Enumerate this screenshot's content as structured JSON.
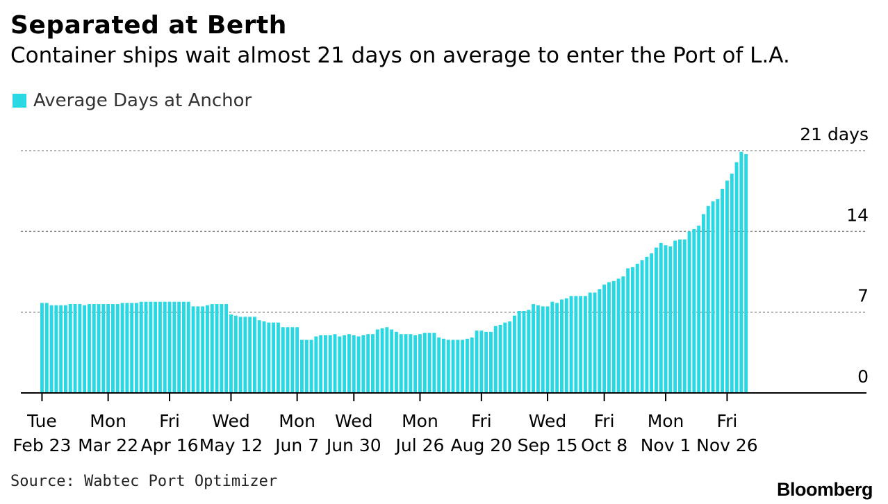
{
  "title": "Separated at Berth",
  "subtitle": "Container ships wait almost 21 days on average to enter the Port of L.A.",
  "source": "Source: Wabtec Port Optimizer",
  "brand": "Bloomberg",
  "colors": {
    "bar": "#2ad8e4",
    "grid": "#888888",
    "axis": "#000000",
    "text": "#000000"
  },
  "chart_data": {
    "type": "bar",
    "title": "Separated at Berth",
    "subtitle": "Container ships wait almost 21 days on average to enter the Port of L.A.",
    "legend": [
      {
        "name": "Average Days at Anchor",
        "color": "#2ad8e4"
      }
    ],
    "legend_position": "top-left",
    "grid": "horizontal dotted",
    "ylim": [
      0,
      21
    ],
    "y_ticks": [
      {
        "value": 0,
        "label": "0"
      },
      {
        "value": 7,
        "label": "7"
      },
      {
        "value": 14,
        "label": "14"
      },
      {
        "value": 21,
        "label": "21 days"
      }
    ],
    "x_ticks": [
      {
        "index": 0,
        "weekday": "Tue",
        "date": "Feb 23"
      },
      {
        "index": 14,
        "weekday": "Mon",
        "date": "Mar 22"
      },
      {
        "index": 27,
        "weekday": "Fri",
        "date": "Apr 16"
      },
      {
        "index": 40,
        "weekday": "Wed",
        "date": "May 12"
      },
      {
        "index": 54,
        "weekday": "Mon",
        "date": "Jun 7"
      },
      {
        "index": 66,
        "weekday": "Wed",
        "date": "Jun 30"
      },
      {
        "index": 80,
        "weekday": "Mon",
        "date": "Jul 26"
      },
      {
        "index": 93,
        "weekday": "Fri",
        "date": "Aug 20"
      },
      {
        "index": 107,
        "weekday": "Wed",
        "date": "Sep 15"
      },
      {
        "index": 119,
        "weekday": "Fri",
        "date": "Oct 8"
      },
      {
        "index": 132,
        "weekday": "Mon",
        "date": "Nov 1"
      },
      {
        "index": 145,
        "weekday": "Fri",
        "date": "Nov 26"
      }
    ],
    "series": [
      {
        "name": "Average Days at Anchor",
        "values": [
          7.8,
          7.8,
          7.6,
          7.6,
          7.6,
          7.6,
          7.7,
          7.7,
          7.7,
          7.6,
          7.7,
          7.7,
          7.7,
          7.7,
          7.7,
          7.7,
          7.7,
          7.8,
          7.8,
          7.8,
          7.8,
          7.9,
          7.9,
          7.9,
          7.9,
          7.9,
          7.9,
          7.9,
          7.9,
          7.9,
          7.9,
          7.9,
          7.5,
          7.5,
          7.5,
          7.6,
          7.7,
          7.7,
          7.7,
          7.7,
          6.8,
          6.7,
          6.6,
          6.6,
          6.6,
          6.6,
          6.3,
          6.2,
          6.1,
          6.1,
          6.1,
          5.7,
          5.7,
          5.7,
          5.7,
          4.6,
          4.6,
          4.6,
          4.9,
          5.0,
          5.0,
          5.0,
          5.1,
          4.9,
          5.0,
          5.1,
          5.0,
          4.9,
          5.0,
          5.1,
          5.1,
          5.5,
          5.6,
          5.7,
          5.5,
          5.3,
          5.1,
          5.1,
          5.1,
          5.0,
          5.1,
          5.2,
          5.2,
          5.2,
          4.8,
          4.7,
          4.6,
          4.6,
          4.6,
          4.6,
          4.7,
          4.8,
          5.4,
          5.4,
          5.3,
          5.3,
          5.8,
          5.9,
          6.1,
          6.2,
          6.7,
          7.1,
          7.1,
          7.2,
          7.7,
          7.6,
          7.5,
          7.5,
          7.9,
          7.8,
          8.1,
          8.2,
          8.4,
          8.4,
          8.4,
          8.4,
          8.7,
          8.7,
          9.0,
          9.4,
          9.6,
          9.7,
          9.9,
          10.1,
          10.8,
          10.9,
          11.2,
          11.5,
          11.8,
          12.1,
          12.6,
          13.0,
          12.8,
          12.7,
          13.2,
          13.3,
          13.3,
          14.0,
          14.2,
          14.5,
          15.5,
          16.2,
          16.6,
          16.8,
          17.7,
          18.4,
          19.0,
          20.0,
          20.9,
          20.7
        ]
      }
    ]
  }
}
